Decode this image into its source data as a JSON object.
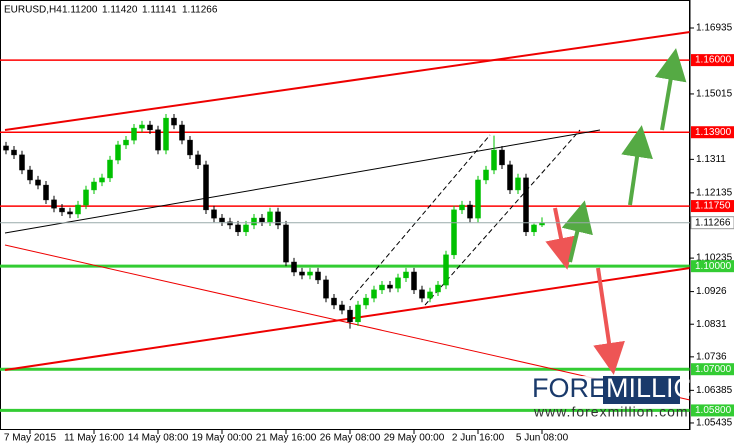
{
  "chart_data": {
    "type": "candlestick",
    "header": {
      "symbol": "EURUSD,H4",
      "values": [
        "1.11200",
        "1.11420",
        "1.11141",
        "1.11266"
      ]
    },
    "watermark": {
      "brand": [
        "FOREX",
        "MILLION"
      ],
      "url": "www.forexmillion.com"
    },
    "xlim": [
      -0.75,
      85.5
    ],
    "xticks": [
      {
        "value": 3,
        "label": "7 May 2015"
      },
      {
        "value": 11,
        "label": "11 May 16:00"
      },
      {
        "value": 19,
        "label": "14 May 08:00"
      },
      {
        "value": 27,
        "label": "19 May 00:00"
      },
      {
        "value": 35,
        "label": "21 May 16:00"
      },
      {
        "value": 43,
        "label": "26 May 08:00"
      },
      {
        "value": 51,
        "label": "29 May 00:00"
      },
      {
        "value": 59,
        "label": "2 Jun 16:00"
      },
      {
        "value": 67,
        "label": "5 Jun 08:00"
      }
    ],
    "ylim": [
      1.0523,
      1.1775
    ],
    "yticks": [
      1.16935,
      1.15015,
      1.1311,
      1.12135,
      1.10235,
      1.0926,
      1.0831,
      1.0736,
      1.06385,
      1.05435
    ],
    "up_color": "#00c000",
    "down_color": "#000000",
    "open": [
      1.135,
      1.1338,
      1.1324,
      1.128,
      1.1251,
      1.1236,
      1.1193,
      1.1169,
      1.1158,
      1.1152,
      1.1178,
      1.1222,
      1.1245,
      1.1257,
      1.1309,
      1.1353,
      1.1367,
      1.1402,
      1.1411,
      1.1397,
      1.1338,
      1.1431,
      1.1411,
      1.1367,
      1.1324,
      1.1295,
      1.1164,
      1.114,
      1.1129,
      1.112,
      1.11,
      1.112,
      1.114,
      1.1129,
      1.1158,
      1.112,
      1.1012,
      1.0983,
      1.0974,
      1.0983,
      1.096,
      1.0907,
      1.0887,
      1.0872,
      1.0838,
      1.0887,
      1.0907,
      1.0931,
      1.0945,
      1.0936,
      1.0966,
      1.0983,
      1.0931,
      1.0907,
      1.0925,
      1.0945,
      1.1033,
      1.1164,
      1.1178,
      1.114,
      1.1251,
      1.128,
      1.1338,
      1.1295,
      1.1222,
      1.1257,
      1.11,
      1.112
    ],
    "high": [
      1.1362,
      1.135,
      1.1336,
      1.1292,
      1.1263,
      1.1248,
      1.1205,
      1.1181,
      1.117,
      1.119,
      1.1234,
      1.1257,
      1.1269,
      1.1321,
      1.1365,
      1.1379,
      1.1414,
      1.1423,
      1.1423,
      1.1409,
      1.1443,
      1.1443,
      1.1423,
      1.1379,
      1.1336,
      1.1307,
      1.1176,
      1.1152,
      1.1141,
      1.1132,
      1.1132,
      1.1152,
      1.1152,
      1.117,
      1.117,
      1.1132,
      1.1024,
      1.0995,
      1.0995,
      1.0995,
      1.0972,
      1.0919,
      1.0899,
      1.0884,
      1.0899,
      1.0919,
      1.0943,
      1.0957,
      1.0957,
      1.0978,
      1.0995,
      1.0995,
      1.0943,
      1.0937,
      1.0957,
      1.1045,
      1.1176,
      1.119,
      1.119,
      1.1263,
      1.1292,
      1.138,
      1.135,
      1.1307,
      1.1269,
      1.1269,
      1.1124,
      1.1142
    ],
    "low": [
      1.1326,
      1.1312,
      1.1268,
      1.1239,
      1.1224,
      1.1181,
      1.1157,
      1.1146,
      1.114,
      1.114,
      1.1166,
      1.121,
      1.1233,
      1.1245,
      1.1297,
      1.1341,
      1.1355,
      1.139,
      1.1385,
      1.1326,
      1.1326,
      1.1399,
      1.1355,
      1.1312,
      1.1283,
      1.1152,
      1.1128,
      1.1117,
      1.1108,
      1.1088,
      1.1088,
      1.1108,
      1.1117,
      1.1117,
      1.1108,
      1.1,
      1.0971,
      1.0962,
      1.0962,
      1.0948,
      1.0895,
      1.0875,
      1.086,
      1.0818,
      1.0826,
      1.0875,
      1.0895,
      1.0919,
      1.0924,
      1.0924,
      1.0954,
      1.0919,
      1.0895,
      1.0895,
      1.0913,
      1.0933,
      1.1021,
      1.1152,
      1.1128,
      1.1128,
      1.1239,
      1.1268,
      1.1283,
      1.121,
      1.121,
      1.1088,
      1.1088,
      1.11141
    ],
    "close": [
      1.1338,
      1.1324,
      1.128,
      1.1251,
      1.1236,
      1.1193,
      1.1169,
      1.1158,
      1.1152,
      1.1178,
      1.1222,
      1.1245,
      1.1257,
      1.1309,
      1.1353,
      1.1367,
      1.1402,
      1.1411,
      1.1397,
      1.1338,
      1.1431,
      1.1411,
      1.1367,
      1.1324,
      1.1295,
      1.1164,
      1.114,
      1.1129,
      1.112,
      1.11,
      1.112,
      1.114,
      1.1129,
      1.1158,
      1.112,
      1.1012,
      1.0983,
      1.0974,
      1.0983,
      1.096,
      1.0907,
      1.0887,
      1.0872,
      1.0838,
      1.0887,
      1.0907,
      1.0931,
      1.0945,
      1.0936,
      1.0966,
      1.0983,
      1.0931,
      1.0907,
      1.0925,
      1.0945,
      1.1033,
      1.1164,
      1.1178,
      1.114,
      1.1251,
      1.128,
      1.1338,
      1.1295,
      1.1222,
      1.1257,
      1.11,
      1.112,
      1.11266
    ],
    "levels": [
      {
        "value": 1.16,
        "label": "1.16000",
        "color": "#ff0000"
      },
      {
        "value": 1.139,
        "label": "1.13900",
        "color": "#ff0000"
      },
      {
        "value": 1.1175,
        "label": "1.11750",
        "color": "#ff0000"
      },
      {
        "value": 1.1,
        "label": "1.10000",
        "color": "#33cc33"
      },
      {
        "value": 1.07,
        "label": "1.07000",
        "color": "#33cc33"
      },
      {
        "value": 1.058,
        "label": "1.05800",
        "color": "#33cc33"
      }
    ],
    "last_price": 1.11266
  }
}
